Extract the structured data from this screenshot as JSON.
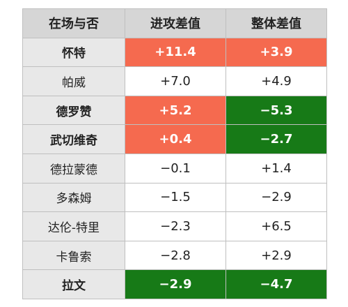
{
  "table": {
    "header": [
      "在场与否",
      "进攻差值",
      "整体差值"
    ],
    "rows": [
      [
        "怀特",
        "+11.4",
        "+3.9"
      ],
      [
        "帕威",
        "+7.0",
        "+4.9"
      ],
      [
        "德罗赞",
        "+5.2",
        "−5.3"
      ],
      [
        "武切维奇",
        "+0.4",
        "−2.7"
      ],
      [
        "德拉蒙德",
        "−0.1",
        "+1.4"
      ],
      [
        "多森姆",
        "−1.5",
        "−2.9"
      ],
      [
        "达伦-特里",
        "−2.3",
        "+6.5"
      ],
      [
        "卡鲁索",
        "−2.8",
        "+2.9"
      ],
      [
        "拉文",
        "−2.9",
        "−4.7"
      ]
    ]
  }
}
